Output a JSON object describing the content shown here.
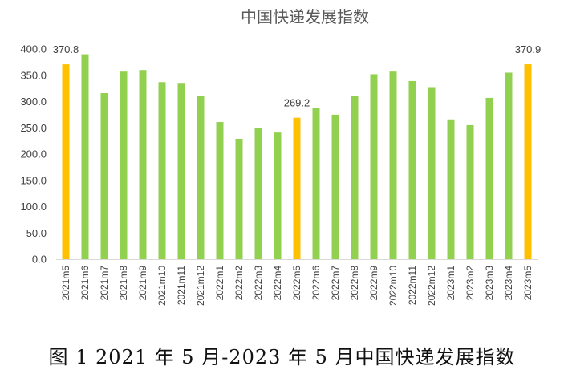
{
  "chart_data": {
    "type": "bar",
    "title": "中国快递发展指数",
    "categories": [
      "2021m5",
      "2021m6",
      "2021m7",
      "2021m8",
      "2021m9",
      "2021m10",
      "2021m11",
      "2021m12",
      "2022m1",
      "2022m2",
      "2022m3",
      "2022m4",
      "2022m5",
      "2022m6",
      "2022m7",
      "2022m8",
      "2022m9",
      "2022m10",
      "2022m11",
      "2022m12",
      "2023m1",
      "2023m2",
      "2023m3",
      "2023m4",
      "2023m5"
    ],
    "values": [
      370.8,
      390,
      316,
      357,
      360,
      337,
      334,
      311,
      261,
      229,
      250,
      241,
      269.2,
      288,
      275,
      311,
      352,
      357,
      339,
      326,
      266,
      255,
      307,
      355,
      370.9
    ],
    "highlight_indices": [
      0,
      12,
      24
    ],
    "data_labels": {
      "0": "370.8",
      "12": "269.2",
      "24": "370.9"
    },
    "yticks": [
      "0.0",
      "50.0",
      "100.0",
      "150.0",
      "200.0",
      "250.0",
      "300.0",
      "350.0",
      "400.0"
    ],
    "ylim": [
      0,
      400
    ],
    "grid": false,
    "colors": {
      "normal": "#92D050",
      "highlight": "#FFC000",
      "axis": "#D9D9D9"
    }
  },
  "caption": "图 1 2021 年 5 月-2023 年 5 月中国快递发展指数"
}
